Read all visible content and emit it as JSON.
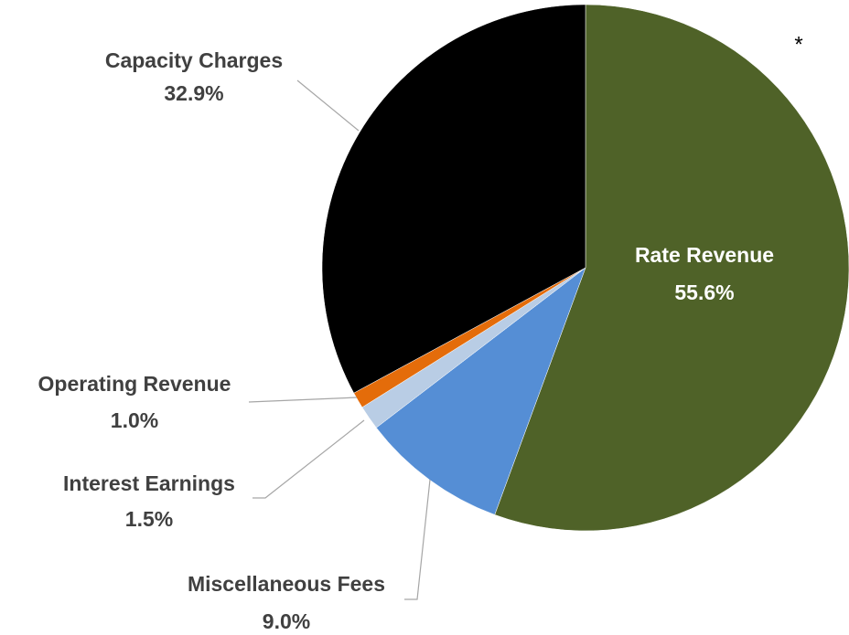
{
  "chart_data": {
    "type": "pie",
    "categories": [
      "Rate Revenue",
      "Miscellaneous Fees",
      "Interest Earnings",
      "Operating Revenue",
      "Capacity Charges"
    ],
    "values": [
      55.6,
      9.0,
      1.5,
      1.0,
      32.9
    ],
    "value_labels": [
      "55.6%",
      "9.0%",
      "1.5%",
      "1.0%",
      "32.9%"
    ],
    "colors": [
      "#4f6228",
      "#558ed5",
      "#b9cde5",
      "#e46c0a",
      "#000000"
    ],
    "annotation": "*"
  }
}
